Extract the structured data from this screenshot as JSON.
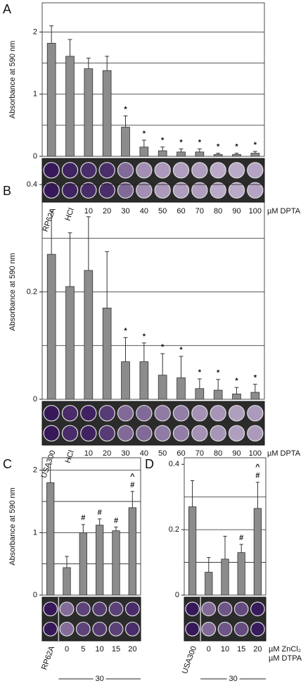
{
  "chart_data": [
    {
      "type": "bar",
      "panel": "A",
      "y_label": "Absorbance at 590 nm",
      "categories": [
        "RP62A",
        "HCl",
        "10",
        "20",
        "30",
        "40",
        "50",
        "60",
        "70",
        "80",
        "90",
        "100"
      ],
      "values": [
        1.82,
        1.61,
        1.41,
        1.38,
        0.47,
        0.15,
        0.09,
        0.07,
        0.07,
        0.03,
        0.03,
        0.05
      ],
      "errors": [
        0.28,
        0.27,
        0.17,
        0.23,
        0.18,
        0.11,
        0.06,
        0.05,
        0.05,
        0.02,
        0.02,
        0.03
      ],
      "markers": [
        null,
        null,
        null,
        null,
        [
          "*"
        ],
        [
          "*"
        ],
        [
          "*"
        ],
        [
          "*"
        ],
        [
          "*"
        ],
        [
          "*"
        ],
        [
          "*"
        ],
        [
          "*"
        ]
      ],
      "unit_labels": [
        "µM DPTA"
      ],
      "ylim": [
        0,
        2.47
      ],
      "yticks": [
        0,
        1,
        2
      ],
      "grid_lines": [
        0.5,
        1,
        1.5,
        2
      ],
      "color": "#8c8c8c"
    },
    {
      "type": "bar",
      "panel": "B",
      "y_label": "Absorbance at 590 nm",
      "categories": [
        "USA300",
        "HCl",
        "10",
        "20",
        "30",
        "40",
        "50",
        "60",
        "70",
        "80",
        "90",
        "100"
      ],
      "values": [
        0.27,
        0.21,
        0.24,
        0.17,
        0.07,
        0.07,
        0.045,
        0.04,
        0.02,
        0.017,
        0.01,
        0.013
      ],
      "errors": [
        0.08,
        0.1,
        0.1,
        0.105,
        0.045,
        0.035,
        0.04,
        0.04,
        0.018,
        0.02,
        0.012,
        0.015
      ],
      "markers": [
        null,
        null,
        null,
        null,
        [
          "*"
        ],
        [
          "*"
        ],
        [
          "*"
        ],
        [
          "*"
        ],
        [
          "*"
        ],
        [
          "*"
        ],
        [
          "*"
        ],
        [
          "*"
        ]
      ],
      "unit_labels": [
        "µM DPTA"
      ],
      "ylim": [
        0,
        0.4
      ],
      "yticks": [
        0,
        0.2,
        0.4
      ],
      "grid_lines": [
        0.1,
        0.2,
        0.3
      ],
      "color": "#8c8c8c"
    },
    {
      "type": "bar",
      "panel": "C",
      "y_label": "Absorbance at 590 nm",
      "categories": [
        "RP62A",
        "0",
        "5",
        "10",
        "15",
        "20"
      ],
      "values": [
        1.8,
        0.44,
        1.0,
        1.12,
        1.03,
        1.4
      ],
      "errors": [
        0.3,
        0.18,
        0.13,
        0.1,
        0.06,
        0.26
      ],
      "markers": [
        null,
        null,
        [
          "#"
        ],
        [
          "#"
        ],
        [
          "#"
        ],
        [
          "#",
          "^"
        ]
      ],
      "group_label": "30",
      "ylim": [
        0,
        2.2
      ],
      "yticks": [
        0,
        1,
        2
      ],
      "grid_lines": [
        0.5,
        1,
        1.5,
        2
      ],
      "color": "#8c8c8c"
    },
    {
      "type": "bar",
      "panel": "D",
      "categories": [
        "USA300",
        "0",
        "10",
        "15",
        "20"
      ],
      "values": [
        0.27,
        0.07,
        0.11,
        0.13,
        0.265
      ],
      "errors": [
        0.08,
        0.045,
        0.07,
        0.025,
        0.08
      ],
      "markers": [
        null,
        null,
        null,
        [
          "#"
        ],
        [
          "#",
          "^"
        ]
      ],
      "unit_labels": [
        "µM ZnCl₂",
        "µM DTPA"
      ],
      "group_label": "30",
      "ylim": [
        0,
        0.42
      ],
      "yticks": [
        0,
        0.2,
        0.4
      ],
      "grid_lines": [
        0.1,
        0.2,
        0.3
      ],
      "color": "#8c8c8c"
    }
  ]
}
